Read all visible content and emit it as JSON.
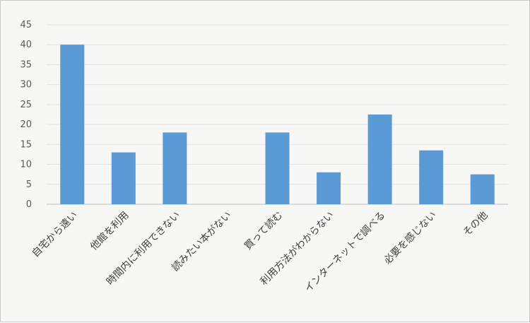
{
  "chart_data": {
    "type": "bar",
    "categories": [
      "自宅から遠い",
      "他館を利用",
      "時間内に利用できない",
      "読みたい本がない",
      "買って読む",
      "利用方法がわからない",
      "インターネットで調べる",
      "必要を感じない",
      "その他"
    ],
    "values": [
      40,
      13,
      18,
      0,
      18,
      8,
      22.5,
      13.5,
      7.5
    ],
    "ylim": [
      0,
      45
    ],
    "yticks": [
      0,
      5,
      10,
      15,
      20,
      25,
      30,
      35,
      40,
      45
    ],
    "grid": false,
    "legend": "none",
    "title": "",
    "xlabel": "",
    "ylabel": "",
    "bar_color": "#5b9bd5"
  }
}
